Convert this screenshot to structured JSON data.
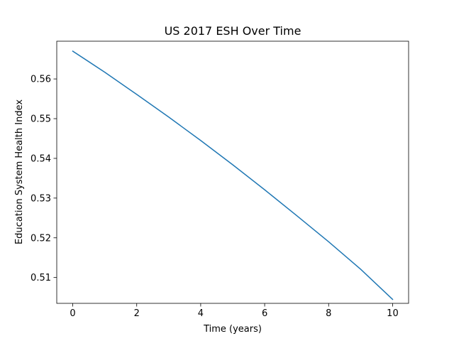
{
  "chart_data": {
    "type": "line",
    "title": "US 2017 ESH Over Time",
    "xlabel": "Time (years)",
    "ylabel": "Education System Health Index",
    "xlim": [
      -0.5,
      10.5
    ],
    "ylim": [
      0.5035,
      0.5695
    ],
    "xticks": [
      0,
      2,
      4,
      6,
      8,
      10
    ],
    "yticks": [
      0.51,
      0.52,
      0.53,
      0.54,
      0.55,
      0.56
    ],
    "ytick_labels": [
      "0.51",
      "0.52",
      "0.53",
      "0.54",
      "0.55",
      "0.56"
    ],
    "grid": false,
    "series": [
      {
        "color": "#1f77b4",
        "x": [
          0,
          1,
          2,
          3,
          4,
          5,
          6,
          7,
          8,
          9,
          10
        ],
        "y": [
          0.567,
          0.5617,
          0.5561,
          0.5504,
          0.5445,
          0.5384,
          0.5321,
          0.5256,
          0.519,
          0.5121,
          0.5045
        ]
      }
    ]
  }
}
